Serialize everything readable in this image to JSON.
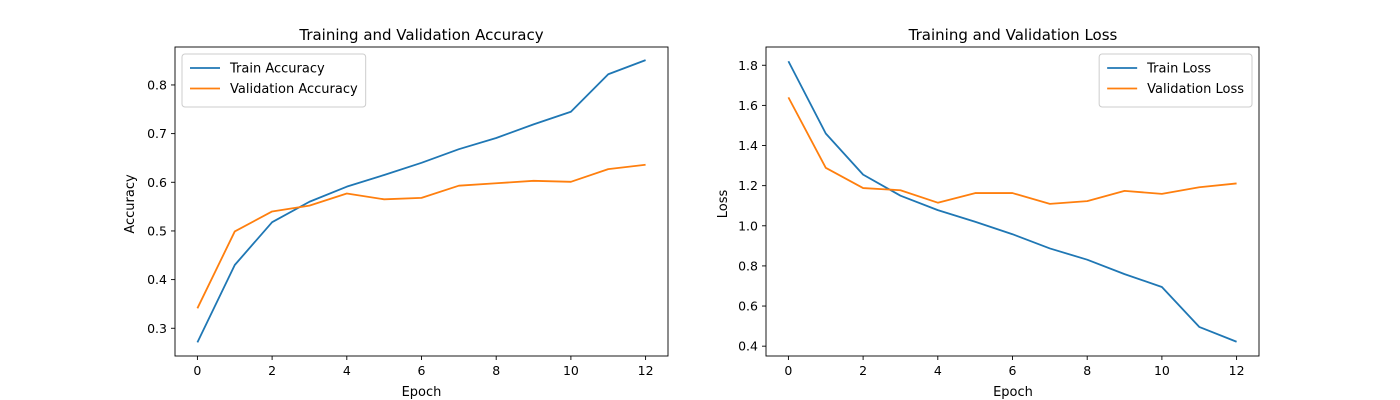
{
  "chart_data": [
    {
      "type": "line",
      "title": "Training and Validation Accuracy",
      "xlabel": "Epoch",
      "ylabel": "Accuracy",
      "xlim": [
        -0.6,
        12.6
      ],
      "ylim": [
        0.243,
        0.878
      ],
      "xticks": [
        0,
        2,
        4,
        6,
        8,
        10,
        12
      ],
      "yticks": [
        0.3,
        0.4,
        0.5,
        0.6,
        0.7,
        0.8
      ],
      "x": [
        0,
        1,
        2,
        3,
        4,
        5,
        6,
        7,
        8,
        9,
        10,
        11,
        12
      ],
      "legend": "top-left",
      "grid": false,
      "series": [
        {
          "name": "Train Accuracy",
          "color": "#1f77b4",
          "values": [
            0.271,
            0.43,
            0.518,
            0.56,
            0.591,
            0.615,
            0.64,
            0.668,
            0.691,
            0.719,
            0.745,
            0.822,
            0.851
          ]
        },
        {
          "name": "Validation Accuracy",
          "color": "#ff7f0e",
          "values": [
            0.341,
            0.499,
            0.54,
            0.552,
            0.577,
            0.565,
            0.568,
            0.593,
            0.598,
            0.603,
            0.601,
            0.627,
            0.636
          ]
        }
      ]
    },
    {
      "type": "line",
      "title": "Training and Validation Loss",
      "xlabel": "Epoch",
      "ylabel": "Loss",
      "xlim": [
        -0.6,
        12.6
      ],
      "ylim": [
        0.351,
        1.891
      ],
      "xticks": [
        0,
        2,
        4,
        6,
        8,
        10,
        12
      ],
      "yticks": [
        0.4,
        0.6,
        0.8,
        1.0,
        1.2,
        1.4,
        1.6,
        1.8
      ],
      "x": [
        0,
        1,
        2,
        3,
        4,
        5,
        6,
        7,
        8,
        9,
        10,
        11,
        12
      ],
      "legend": "top-right",
      "grid": false,
      "series": [
        {
          "name": "Train Loss",
          "color": "#1f77b4",
          "values": [
            1.82,
            1.46,
            1.255,
            1.15,
            1.078,
            1.02,
            0.958,
            0.887,
            0.831,
            0.759,
            0.695,
            0.496,
            0.422
          ]
        },
        {
          "name": "Validation Loss",
          "color": "#ff7f0e",
          "values": [
            1.64,
            1.289,
            1.188,
            1.177,
            1.115,
            1.163,
            1.163,
            1.109,
            1.123,
            1.174,
            1.159,
            1.192,
            1.211
          ]
        }
      ]
    }
  ]
}
